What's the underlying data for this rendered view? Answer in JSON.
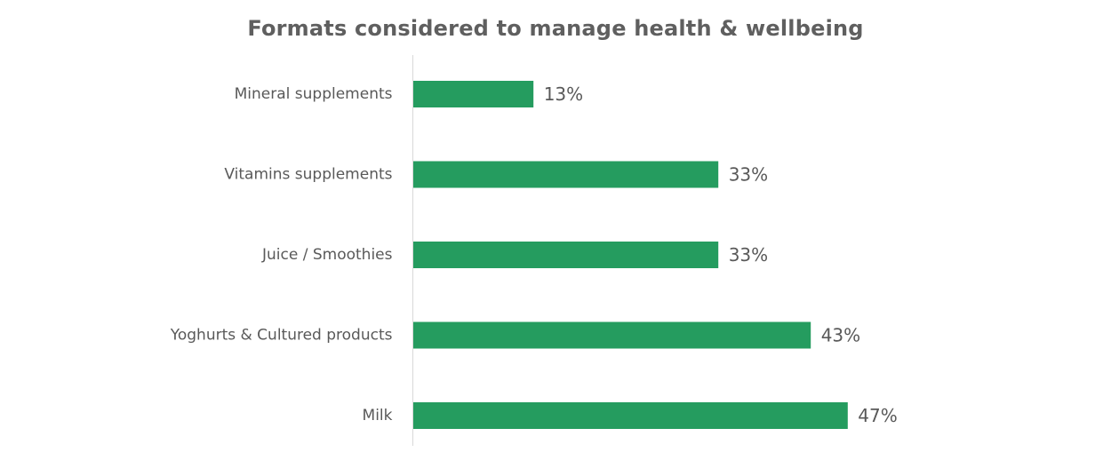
{
  "chart_data": {
    "type": "bar",
    "orientation": "horizontal",
    "title": "Formats considered to manage health & wellbeing",
    "xlabel": "",
    "ylabel": "",
    "categories": [
      "Mineral supplements",
      "Vitamins supplements",
      "Juice / Smoothies",
      "Yoghurts & Cultured products",
      "Milk"
    ],
    "values": [
      13,
      33,
      33,
      43,
      47
    ],
    "value_labels": [
      "13%",
      "33%",
      "33%",
      "43%",
      "47%"
    ],
    "value_unit": "%",
    "xlim": [
      0,
      50
    ],
    "grid": false,
    "legend": "none",
    "colors": {
      "bar": "#259c5f",
      "axis": "#d9d9d9",
      "text": "#595959",
      "title": "#5f5f5f"
    }
  }
}
